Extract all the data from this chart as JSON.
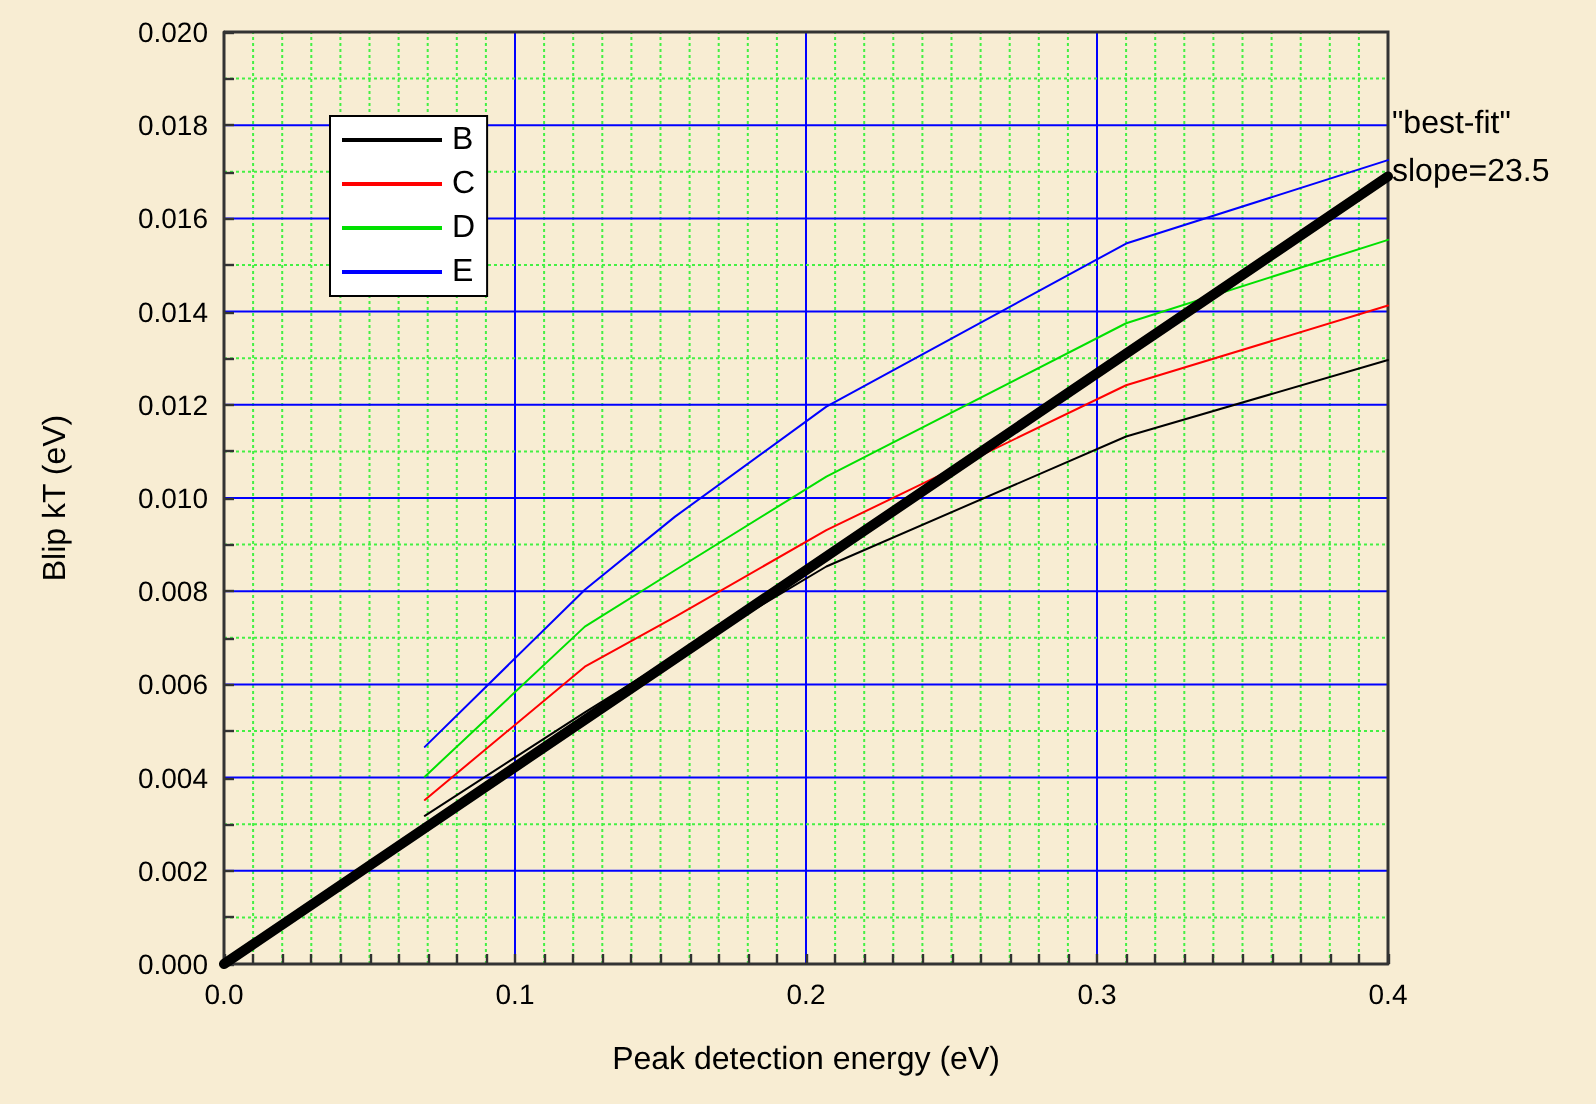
{
  "chart_data": {
    "type": "line",
    "xlabel": "Peak detection energy (eV)",
    "ylabel": "Blip kT (eV)",
    "xlim": [
      0,
      0.4
    ],
    "xticks": [
      {
        "value": 0,
        "label": "0.0"
      },
      {
        "value": 0.01,
        "label": null
      },
      {
        "value": 0.02,
        "label": null
      },
      {
        "value": 0.03,
        "label": null
      },
      {
        "value": 0.04,
        "label": null
      },
      {
        "value": 0.05,
        "label": null
      },
      {
        "value": 0.06,
        "label": null
      },
      {
        "value": 0.07,
        "label": null
      },
      {
        "value": 0.08,
        "label": null
      },
      {
        "value": 0.09,
        "label": null
      },
      0.1,
      {
        "value": 0.11,
        "label": null
      },
      {
        "value": 0.12,
        "label": null
      },
      {
        "value": 0.13,
        "label": null
      },
      {
        "value": 0.14,
        "label": null
      },
      {
        "value": 0.15,
        "label": null
      },
      {
        "value": 0.16,
        "label": null
      },
      {
        "value": 0.17,
        "label": null
      },
      {
        "value": 0.18,
        "label": null
      },
      {
        "value": 0.19,
        "label": null
      },
      0.2,
      {
        "value": 0.21,
        "label": null
      },
      {
        "value": 0.22,
        "label": null
      },
      {
        "value": 0.23,
        "label": null
      },
      {
        "value": 0.24,
        "label": null
      },
      {
        "value": 0.25,
        "label": null
      },
      {
        "value": 0.26,
        "label": null
      },
      {
        "value": 0.27,
        "label": null
      },
      {
        "value": 0.28,
        "label": null
      },
      {
        "value": 0.29,
        "label": null
      },
      0.3,
      {
        "value": 0.31,
        "label": null
      },
      {
        "value": 0.32,
        "label": null
      },
      {
        "value": 0.33,
        "label": null
      },
      {
        "value": 0.34,
        "label": null
      },
      {
        "value": 0.35,
        "label": null
      },
      {
        "value": 0.36,
        "label": null
      },
      {
        "value": 0.37,
        "label": null
      },
      {
        "value": 0.38,
        "label": null
      },
      {
        "value": 0.39,
        "label": null
      },
      0.4
    ],
    "ylim": [
      0,
      0.02
    ],
    "yticks": [
      {
        "value": 0,
        "label": "0.000"
      },
      {
        "value": 0.001,
        "label": null
      },
      0.002,
      {
        "value": 0.003,
        "label": null
      },
      0.004,
      {
        "value": 0.005,
        "label": null
      },
      0.006,
      {
        "value": 0.007,
        "label": null
      },
      0.008,
      {
        "value": 0.009,
        "label": null
      },
      {
        "value": 0.01,
        "label": "0.010"
      },
      {
        "value": 0.011,
        "label": null
      },
      0.012,
      {
        "value": 0.013,
        "label": null
      },
      0.014,
      {
        "value": 0.015,
        "label": null
      },
      0.016,
      {
        "value": 0.017,
        "label": null
      },
      0.018,
      {
        "value": 0.019,
        "label": null
      },
      {
        "value": 0.02,
        "label": "0.020"
      }
    ],
    "grid": true,
    "legend": "top left",
    "marker": "none",
    "line_style": "solid",
    "series": [
      {
        "name": "B",
        "color": "#000000",
        "x": [
          0.069,
          0.124,
          0.155,
          0.207,
          0.31,
          0.4
        ],
        "values": [
          0.00318,
          0.0054,
          0.0066,
          0.00853,
          0.01132,
          0.01296
        ]
      },
      {
        "name": "C",
        "color": "#ff0000",
        "x": [
          0.069,
          0.124,
          0.155,
          0.207,
          0.31,
          0.4
        ],
        "values": [
          0.00352,
          0.00638,
          0.00745,
          0.00931,
          0.01242,
          0.01413
        ]
      },
      {
        "name": "D",
        "color": "#00e000",
        "x": [
          0.069,
          0.124,
          0.155,
          0.207,
          0.31,
          0.4
        ],
        "values": [
          0.00402,
          0.00724,
          0.00845,
          0.01046,
          0.01375,
          0.01554
        ]
      },
      {
        "name": "E",
        "color": "#0000ff",
        "x": [
          0.069,
          0.124,
          0.155,
          0.207,
          0.31,
          0.4
        ],
        "values": [
          0.00466,
          0.00803,
          0.0096,
          0.01196,
          0.01546,
          0.01725
        ]
      },
      {
        "color": "#000000",
        "x": [
          0,
          0.4
        ],
        "values": [
          0,
          0.0169
        ]
      }
    ],
    "annotations": [
      {
        "text": "\"best-fit\"\nslope=23.5",
        "x": 0.4,
        "y": 0.0169
      }
    ]
  }
}
